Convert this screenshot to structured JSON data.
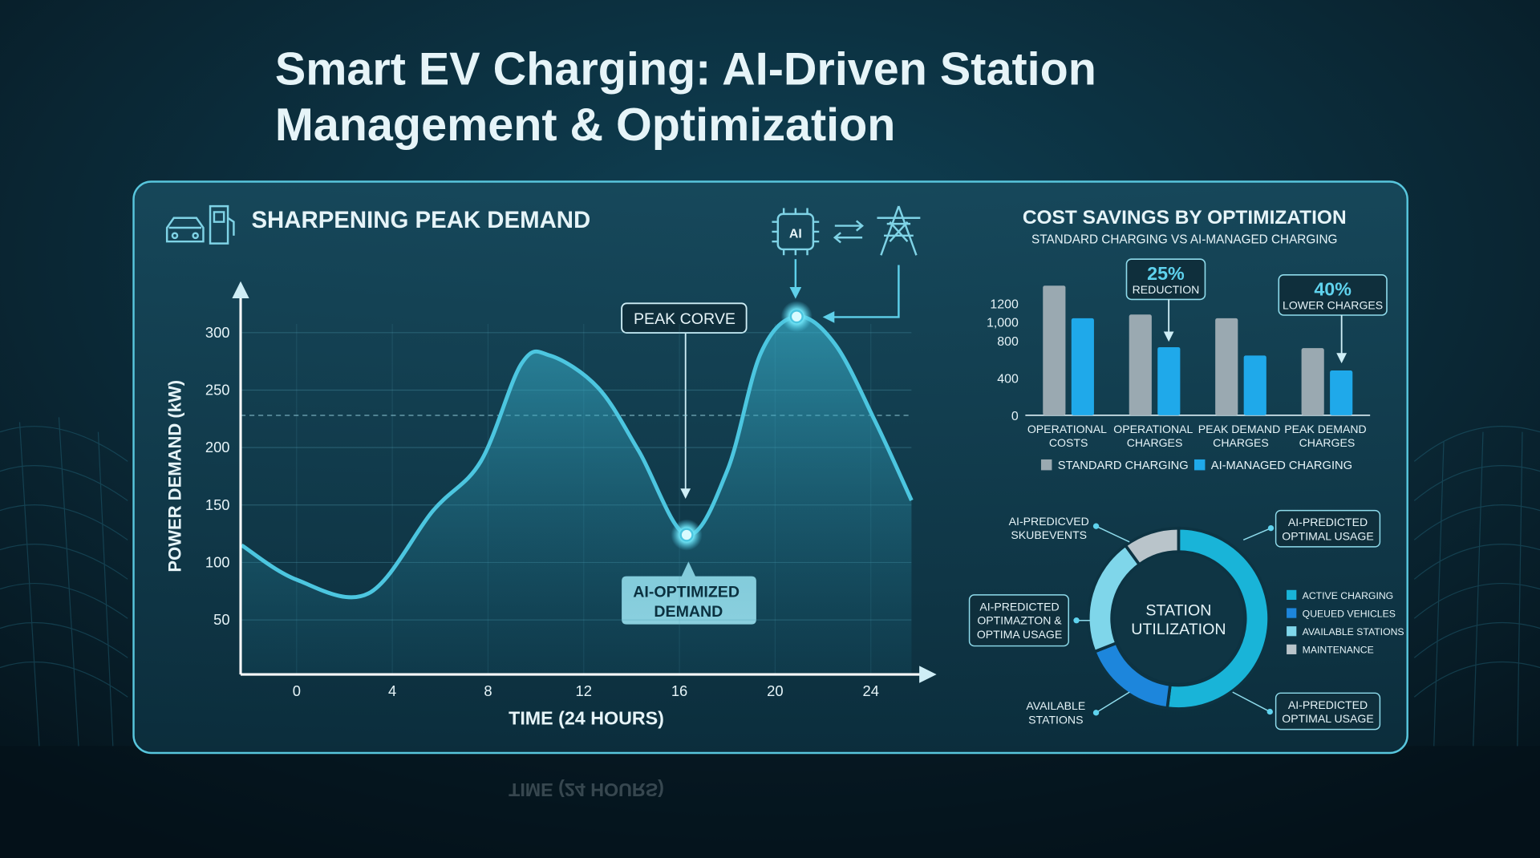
{
  "title": [
    "Smart EV Charging: AI-Driven Station",
    "Management & Optimization"
  ],
  "chart_data": [
    {
      "type": "line",
      "title": "SHARPENING PEAK DEMAND",
      "x_label": "TIME (24 HOURS)",
      "y_label": "POWER DEMAND (kW)",
      "x": [
        -2.3,
        0,
        3,
        5.7,
        7.7,
        9.4,
        10.6,
        12.6,
        14.3,
        16.3,
        18,
        19.4,
        20.9,
        22.5,
        24.2,
        25.7
      ],
      "values": [
        115,
        85,
        73,
        145,
        188,
        273,
        280,
        252,
        197,
        124,
        180,
        282,
        314,
        290,
        222,
        154
      ],
      "color": "#4cc6e0",
      "xlim": [
        -2.34,
        26.6
      ],
      "ylim": [
        0,
        340
      ],
      "xticks": [
        0,
        4,
        8,
        12,
        16,
        20,
        24
      ],
      "yticks": [
        50,
        100,
        150,
        200,
        250,
        300
      ],
      "threshold": 228,
      "grid": true,
      "peak_label": "PEAK CORVE",
      "trough_label": "AI-OPTIMIZED DEMAND"
    },
    {
      "type": "bar",
      "title": "COST SAVINGS BY OPTIMIZATION",
      "subtitle": "STANDARD CHARGING VS AI-MANAGED CHARGING",
      "categories": [
        "OPERATIONAL COSTS",
        "OPERATIONAL CHARGES",
        "PEAK DEMAND CHARGES",
        "PEAK DEMAND CHARGES"
      ],
      "series": [
        {
          "name": "STANDARD CHARGING",
          "color": "#9aa9b1",
          "values": [
            1390,
            1080,
            1040,
            720
          ]
        },
        {
          "name": "AI-MANAGED CHARGING",
          "color": "#1fa9ea",
          "values": [
            1040,
            730,
            640,
            480
          ]
        }
      ],
      "ylim": [
        0,
        1600
      ],
      "yticks": [
        0,
        400,
        800,
        1200,
        {
          "value": 1000,
          "label": "1,000"
        }
      ],
      "annotations": [
        {
          "headline": "25%",
          "text": "REDUCTION"
        },
        {
          "headline": "40%",
          "text": "LOWER CHARGES"
        }
      ]
    },
    {
      "type": "donut",
      "center_label": [
        "STATION",
        "UTILIZATION"
      ],
      "categories": [
        "ACTIVE CHARGING",
        "QUEUED VEHICLES",
        "AVAILABLE STATIONS",
        "MAINTENANCE"
      ],
      "values": [
        52,
        17,
        21,
        10
      ],
      "colors": [
        "#19b4d8",
        "#1d86dc",
        "#7fd6ea",
        "#b9c4ca"
      ],
      "callouts": [
        [
          "AI-PREDICVED",
          "SKUBEVENTS"
        ],
        [
          "AI-PREDICTED",
          "OPTIMAL USAGE"
        ],
        [
          "AI-PREDICTED",
          "OPTIMAZTON &",
          "OPTIMA USAGE"
        ],
        [
          "AVAILABLE",
          "STATIONS"
        ],
        [
          "AI-PREDICTED",
          "OPTIMAL USAGE"
        ]
      ]
    }
  ]
}
